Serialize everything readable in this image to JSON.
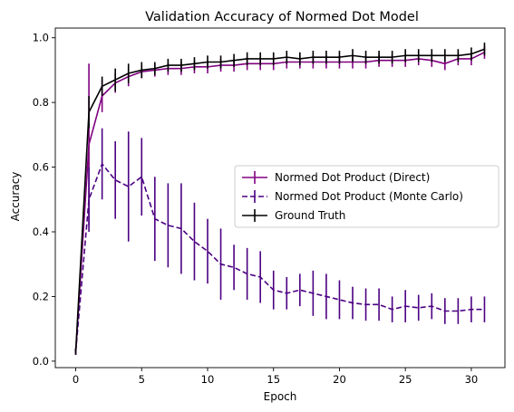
{
  "chart_data": {
    "type": "line",
    "title": "Validation Accuracy of Normed Dot Model",
    "xlabel": "Epoch",
    "ylabel": "Accuracy",
    "xlim": [
      -1.55,
      32.55
    ],
    "ylim": [
      -0.02,
      1.03
    ],
    "xticks": [
      0,
      5,
      10,
      15,
      20,
      25,
      30
    ],
    "yticks": [
      0.0,
      0.2,
      0.4,
      0.6,
      0.8,
      1.0
    ],
    "ytick_labels": [
      "0.0",
      "0.2",
      "0.4",
      "0.6",
      "0.8",
      "1.0"
    ],
    "legend_position": "center-right",
    "series": [
      {
        "name": "Normed Dot Product (Direct)",
        "color": "#800080",
        "style": "solid",
        "x": [
          0,
          1,
          2,
          3,
          4,
          5,
          6,
          7,
          8,
          9,
          10,
          11,
          12,
          13,
          14,
          15,
          16,
          17,
          18,
          19,
          20,
          21,
          22,
          23,
          24,
          25,
          26,
          27,
          28,
          29,
          30,
          31
        ],
        "y": [
          0.03,
          0.67,
          0.82,
          0.86,
          0.88,
          0.895,
          0.9,
          0.905,
          0.905,
          0.91,
          0.91,
          0.915,
          0.915,
          0.92,
          0.92,
          0.92,
          0.925,
          0.925,
          0.925,
          0.925,
          0.925,
          0.925,
          0.925,
          0.93,
          0.93,
          0.93,
          0.935,
          0.93,
          0.92,
          0.935,
          0.935,
          0.955
        ],
        "err": [
          0.01,
          0.25,
          0.05,
          0.03,
          0.03,
          0.02,
          0.02,
          0.02,
          0.02,
          0.02,
          0.02,
          0.02,
          0.02,
          0.02,
          0.02,
          0.02,
          0.02,
          0.02,
          0.02,
          0.02,
          0.02,
          0.02,
          0.02,
          0.02,
          0.02,
          0.02,
          0.02,
          0.02,
          0.02,
          0.02,
          0.02,
          0.02
        ]
      },
      {
        "name": "Normed Dot Product (Monte Carlo)",
        "color": "#4b0082",
        "style": "dashed",
        "x": [
          0,
          1,
          2,
          3,
          4,
          5,
          6,
          7,
          8,
          9,
          10,
          11,
          12,
          13,
          14,
          15,
          16,
          17,
          18,
          19,
          20,
          21,
          22,
          23,
          24,
          25,
          26,
          27,
          28,
          29,
          30,
          31
        ],
        "y": [
          0.03,
          0.5,
          0.61,
          0.56,
          0.54,
          0.57,
          0.44,
          0.42,
          0.41,
          0.37,
          0.34,
          0.3,
          0.29,
          0.27,
          0.26,
          0.22,
          0.21,
          0.22,
          0.21,
          0.2,
          0.19,
          0.18,
          0.175,
          0.175,
          0.16,
          0.17,
          0.165,
          0.17,
          0.155,
          0.155,
          0.16,
          0.16
        ],
        "err": [
          0.01,
          0.1,
          0.11,
          0.12,
          0.17,
          0.12,
          0.13,
          0.13,
          0.14,
          0.12,
          0.1,
          0.11,
          0.07,
          0.08,
          0.08,
          0.06,
          0.05,
          0.05,
          0.07,
          0.07,
          0.06,
          0.05,
          0.05,
          0.05,
          0.04,
          0.05,
          0.04,
          0.04,
          0.04,
          0.04,
          0.04,
          0.04
        ]
      },
      {
        "name": "Ground Truth",
        "color": "#000000",
        "style": "solid",
        "x": [
          0,
          1,
          2,
          3,
          4,
          5,
          6,
          7,
          8,
          9,
          10,
          11,
          12,
          13,
          14,
          15,
          16,
          17,
          18,
          19,
          20,
          21,
          22,
          23,
          24,
          25,
          26,
          27,
          28,
          29,
          30,
          31
        ],
        "y": [
          0.03,
          0.77,
          0.85,
          0.87,
          0.89,
          0.9,
          0.905,
          0.915,
          0.915,
          0.92,
          0.925,
          0.925,
          0.93,
          0.935,
          0.935,
          0.935,
          0.94,
          0.935,
          0.94,
          0.94,
          0.94,
          0.945,
          0.94,
          0.94,
          0.94,
          0.945,
          0.945,
          0.945,
          0.945,
          0.945,
          0.95,
          0.965
        ],
        "err": [
          0.01,
          0.05,
          0.03,
          0.035,
          0.03,
          0.025,
          0.02,
          0.02,
          0.02,
          0.02,
          0.02,
          0.02,
          0.02,
          0.02,
          0.02,
          0.02,
          0.02,
          0.02,
          0.02,
          0.02,
          0.02,
          0.02,
          0.02,
          0.02,
          0.02,
          0.02,
          0.02,
          0.02,
          0.02,
          0.02,
          0.02,
          0.02
        ]
      }
    ]
  }
}
